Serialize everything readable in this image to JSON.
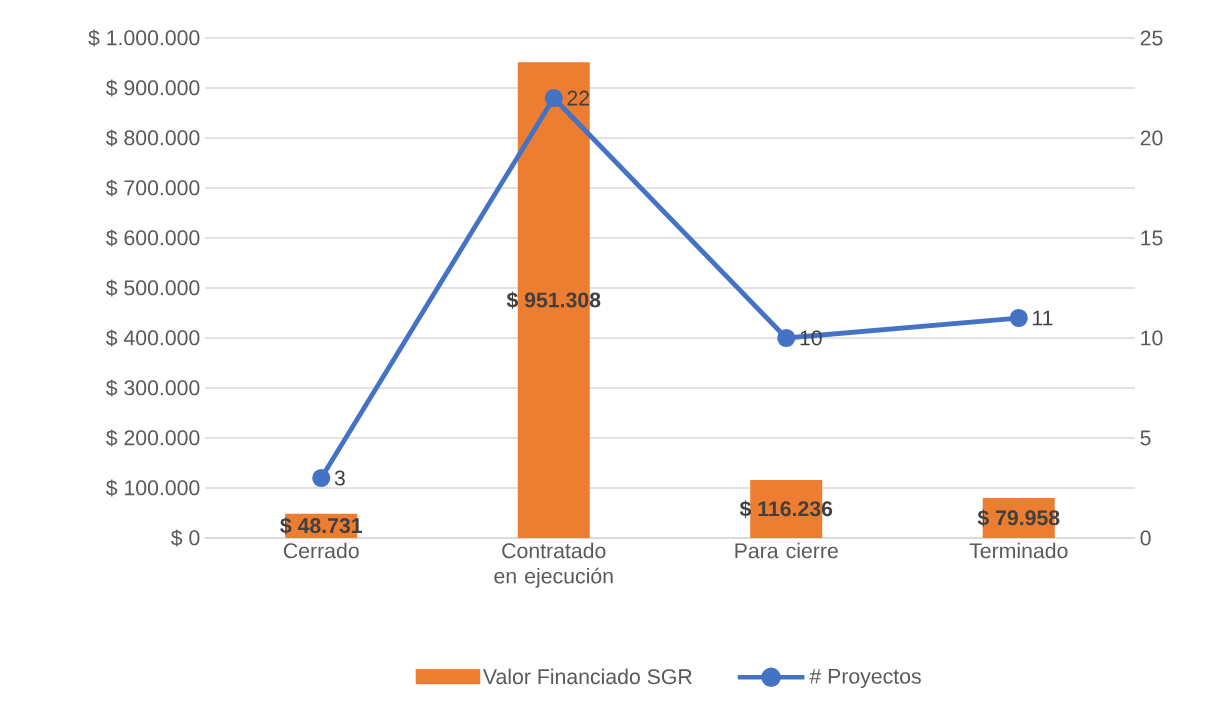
{
  "chart_data": {
    "type": "bar",
    "categories": [
      "Cerrado",
      "Contratado en ejecución",
      "Para cierre",
      "Terminado"
    ],
    "series": [
      {
        "name": "Valor Financiado SGR",
        "color": "#ed7d31",
        "values": [
          48731,
          951308,
          116236,
          79958
        ],
        "value_labels": [
          "$ 48.731",
          "$ 951.308",
          "$ 116.236",
          "$ 79.958"
        ]
      },
      {
        "name": "# Proyectos",
        "type": "line",
        "axis": "y2",
        "color": "#4472c4",
        "marker": "circle",
        "values": [
          3,
          22,
          10,
          11
        ],
        "value_labels": [
          "3",
          "22",
          "10",
          "11"
        ]
      }
    ],
    "ylim": [
      0,
      1000000
    ],
    "yticks": [
      {
        "value": 0,
        "label": "$ 0"
      },
      {
        "value": 100000,
        "label": "$ 100.000"
      },
      {
        "value": 200000,
        "label": "$ 200.000"
      },
      {
        "value": 300000,
        "label": "$ 300.000"
      },
      {
        "value": 400000,
        "label": "$ 400.000"
      },
      {
        "value": 500000,
        "label": "$ 500.000"
      },
      {
        "value": 600000,
        "label": "$ 600.000"
      },
      {
        "value": 700000,
        "label": "$ 700.000"
      },
      {
        "value": 800000,
        "label": "$ 800.000"
      },
      {
        "value": 900000,
        "label": "$ 900.000"
      },
      {
        "value": 1000000,
        "label": "$ 1.000.000"
      }
    ],
    "y2lim": [
      0,
      25
    ],
    "y2ticks": [
      0,
      5,
      10,
      15,
      20,
      25
    ],
    "grid": "y",
    "legend": "bottom"
  }
}
